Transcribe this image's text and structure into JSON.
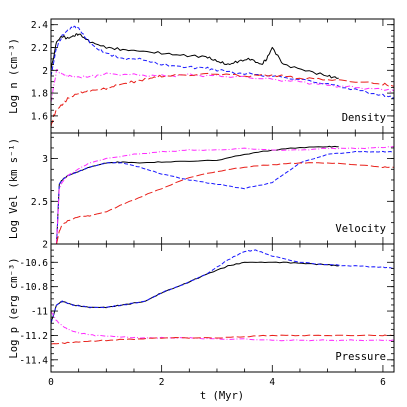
{
  "chart_data": {
    "type": "line",
    "x_label": "t (Myr)",
    "x_range": [
      0,
      6.2
    ],
    "x_ticks": [
      0,
      2,
      4,
      6
    ],
    "colors": {
      "black": "#000000",
      "blue": "#1a1aff",
      "magenta": "#ff2bff",
      "red": "#e8201a"
    },
    "panels": [
      {
        "id": "density",
        "name": "Density",
        "ylabel": "Log n (cm⁻³)",
        "ylim": [
          1.45,
          2.45
        ],
        "yticks": [
          1.6,
          1.8,
          2,
          2.2,
          2.4
        ],
        "series": [
          {
            "color": "black",
            "dash": "solid",
            "x": [
              0,
              0.1,
              0.2,
              0.3,
              0.4,
              0.5,
              0.7,
              1.0,
              1.3,
              1.6,
              2.0,
              2.4,
              2.8,
              3.0,
              3.2,
              3.4,
              3.6,
              3.8,
              3.9,
              4.0,
              4.2,
              4.6,
              5.0,
              5.2
            ],
            "y": [
              2.0,
              2.25,
              2.3,
              2.28,
              2.3,
              2.32,
              2.25,
              2.2,
              2.18,
              2.17,
              2.15,
              2.13,
              2.12,
              2.08,
              2.05,
              2.08,
              2.1,
              2.05,
              2.1,
              2.2,
              2.05,
              2.0,
              1.95,
              1.93
            ]
          },
          {
            "color": "blue",
            "dash": "dash",
            "x": [
              0,
              0.1,
              0.2,
              0.3,
              0.4,
              0.5,
              0.6,
              0.8,
              1.0,
              1.3,
              1.6,
              2.0,
              2.4,
              2.8,
              3.0,
              3.5,
              4.0,
              4.5,
              5.0,
              5.5,
              6.0,
              6.2
            ],
            "y": [
              1.95,
              2.2,
              2.3,
              2.35,
              2.38,
              2.37,
              2.3,
              2.2,
              2.15,
              2.1,
              2.1,
              2.05,
              2.03,
              2.02,
              2.0,
              1.97,
              1.95,
              1.92,
              1.88,
              1.83,
              1.78,
              1.76
            ]
          },
          {
            "color": "magenta",
            "dash": "dashdot",
            "x": [
              0,
              0.1,
              0.2,
              0.3,
              0.5,
              0.8,
              1.0,
              1.5,
              2.0,
              2.5,
              3.0,
              3.5,
              4.0,
              4.5,
              5.0,
              5.5,
              6.0,
              6.2
            ],
            "y": [
              1.72,
              2.0,
              1.97,
              1.95,
              1.94,
              1.95,
              1.97,
              1.96,
              1.95,
              1.96,
              1.95,
              1.94,
              1.92,
              1.9,
              1.87,
              1.85,
              1.83,
              1.82
            ]
          },
          {
            "color": "red",
            "dash": "longdash",
            "x": [
              0,
              0.05,
              0.1,
              0.2,
              0.3,
              0.5,
              0.7,
              1.0,
              1.2,
              1.5,
              1.8,
              2.0,
              2.5,
              3.0,
              3.5,
              4.0,
              4.5,
              5.0,
              5.5,
              6.0,
              6.2
            ],
            "y": [
              1.5,
              1.6,
              1.65,
              1.7,
              1.75,
              1.8,
              1.82,
              1.84,
              1.87,
              1.9,
              1.93,
              1.95,
              1.96,
              1.97,
              1.95,
              1.96,
              1.93,
              1.92,
              1.9,
              1.88,
              1.86
            ]
          }
        ]
      },
      {
        "id": "velocity",
        "name": "Velocity",
        "ylabel": "Log Vel (km s⁻¹)",
        "ylim": [
          2.0,
          3.3
        ],
        "yticks": [
          2,
          2.5,
          3
        ],
        "series": [
          {
            "color": "black",
            "dash": "solid",
            "x": [
              0.1,
              0.15,
              0.2,
              0.3,
              0.5,
              0.7,
              1.0,
              1.3,
              1.6,
              2.0,
              2.5,
              3.0,
              3.5,
              4.0,
              4.5,
              5.0,
              5.2
            ],
            "y": [
              2.0,
              2.7,
              2.75,
              2.8,
              2.85,
              2.9,
              2.95,
              2.96,
              2.95,
              2.96,
              2.97,
              2.98,
              3.05,
              3.1,
              3.13,
              3.14,
              3.14
            ]
          },
          {
            "color": "blue",
            "dash": "dash",
            "x": [
              0.1,
              0.15,
              0.2,
              0.3,
              0.5,
              0.7,
              1.0,
              1.3,
              1.6,
              2.0,
              2.5,
              3.0,
              3.5,
              4.0,
              4.5,
              5.0,
              5.5,
              6.0,
              6.2
            ],
            "y": [
              2.0,
              2.7,
              2.75,
              2.8,
              2.85,
              2.9,
              2.95,
              2.95,
              2.9,
              2.82,
              2.75,
              2.7,
              2.65,
              2.72,
              2.95,
              3.05,
              3.08,
              3.08,
              3.08
            ]
          },
          {
            "color": "magenta",
            "dash": "dashdot",
            "x": [
              0.1,
              0.15,
              0.2,
              0.3,
              0.5,
              0.7,
              1.0,
              1.5,
              2.0,
              2.5,
              3.0,
              3.5,
              4.0,
              4.5,
              5.0,
              5.5,
              6.0,
              6.2
            ],
            "y": [
              2.0,
              2.65,
              2.72,
              2.8,
              2.88,
              2.95,
              3.0,
              3.05,
              3.08,
              3.1,
              3.1,
              3.12,
              3.1,
              3.1,
              3.12,
              3.12,
              3.13,
              3.14
            ]
          },
          {
            "color": "red",
            "dash": "longdash",
            "x": [
              0.1,
              0.15,
              0.2,
              0.3,
              0.5,
              0.7,
              1.0,
              1.5,
              2.0,
              2.5,
              3.0,
              3.5,
              4.0,
              4.5,
              5.0,
              5.5,
              6.0,
              6.2
            ],
            "y": [
              2.0,
              2.15,
              2.22,
              2.27,
              2.32,
              2.33,
              2.38,
              2.52,
              2.65,
              2.78,
              2.85,
              2.9,
              2.93,
              2.95,
              2.95,
              2.93,
              2.9,
              2.9
            ]
          }
        ]
      },
      {
        "id": "pressure",
        "name": "Pressure",
        "ylabel": "Log p (erg cm⁻³)",
        "ylim": [
          -11.5,
          -10.45
        ],
        "yticks": [
          -11.4,
          -11.2,
          -11,
          -10.8,
          -10.6
        ],
        "series": [
          {
            "color": "black",
            "dash": "solid",
            "x": [
              0,
              0.1,
              0.2,
              0.4,
              0.7,
              1.0,
              1.3,
              1.7,
              2.0,
              2.4,
              2.8,
              3.2,
              3.5,
              3.8,
              4.2,
              4.6,
              5.0,
              5.2
            ],
            "y": [
              -11.1,
              -10.95,
              -10.92,
              -10.95,
              -10.97,
              -10.97,
              -10.95,
              -10.92,
              -10.85,
              -10.78,
              -10.7,
              -10.63,
              -10.6,
              -10.6,
              -10.6,
              -10.61,
              -10.62,
              -10.63
            ]
          },
          {
            "color": "blue",
            "dash": "dash",
            "x": [
              0,
              0.1,
              0.2,
              0.4,
              0.7,
              1.0,
              1.3,
              1.7,
              2.0,
              2.4,
              2.8,
              3.2,
              3.5,
              3.7,
              4.0,
              4.5,
              5.0,
              5.5,
              6.0,
              6.2
            ],
            "y": [
              -11.1,
              -10.95,
              -10.92,
              -10.95,
              -10.97,
              -10.97,
              -10.95,
              -10.92,
              -10.85,
              -10.78,
              -10.7,
              -10.58,
              -10.51,
              -10.5,
              -10.55,
              -10.6,
              -10.62,
              -10.63,
              -10.64,
              -10.65
            ]
          },
          {
            "color": "magenta",
            "dash": "dashdot",
            "x": [
              0,
              0.1,
              0.2,
              0.3,
              0.5,
              0.8,
              1.2,
              1.6,
              2.0,
              2.5,
              3.0,
              3.5,
              4.0,
              4.5,
              5.0,
              5.5,
              6.0,
              6.2
            ],
            "y": [
              -11.0,
              -11.08,
              -11.12,
              -11.15,
              -11.18,
              -11.2,
              -11.21,
              -11.22,
              -11.22,
              -11.22,
              -11.23,
              -11.23,
              -11.24,
              -11.24,
              -11.24,
              -11.24,
              -11.24,
              -11.24
            ]
          },
          {
            "color": "red",
            "dash": "longdash",
            "x": [
              0,
              0.3,
              0.6,
              1.0,
              1.5,
              2.0,
              2.5,
              3.0,
              3.5,
              4.0,
              4.5,
              5.0,
              5.5,
              6.0,
              6.2
            ],
            "y": [
              -11.27,
              -11.26,
              -11.25,
              -11.24,
              -11.23,
              -11.22,
              -11.22,
              -11.22,
              -11.21,
              -11.2,
              -11.2,
              -11.2,
              -11.2,
              -11.2,
              -11.2
            ]
          }
        ]
      }
    ]
  }
}
